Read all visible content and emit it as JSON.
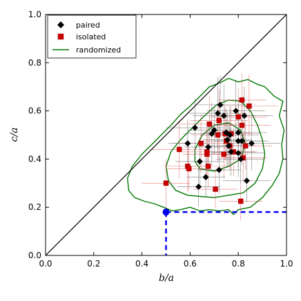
{
  "chart_data": {
    "type": "scatter",
    "xlabel": "b/a",
    "ylabel": "c/a",
    "xlim": [
      0.0,
      1.0
    ],
    "ylim": [
      0.0,
      1.0
    ],
    "x_ticks": [
      "0.0",
      "0.2",
      "0.4",
      "0.6",
      "0.8",
      "1.0"
    ],
    "y_ticks": [
      "0.0",
      "0.2",
      "0.4",
      "0.6",
      "0.8",
      "1.0"
    ],
    "grid": false,
    "legend_position": "top-left",
    "colors": {
      "paired": "#000000",
      "isolated": "#cc0000",
      "randomized": "#007700",
      "reference_point": "#0000ee",
      "diagonal": "#000000"
    },
    "series": [
      {
        "name": "paired",
        "marker": "diamond",
        "points": [
          {
            "x": 0.59,
            "y": 0.465,
            "xerr": 0.08,
            "yerr": 0.1
          },
          {
            "x": 0.62,
            "y": 0.53,
            "xerr": 0.12,
            "yerr": 0.12
          },
          {
            "x": 0.635,
            "y": 0.285,
            "xerr": 0.09,
            "yerr": 0.08
          },
          {
            "x": 0.64,
            "y": 0.39,
            "xerr": 0.1,
            "yerr": 0.1
          },
          {
            "x": 0.665,
            "y": 0.325,
            "xerr": 0.08,
            "yerr": 0.08
          },
          {
            "x": 0.675,
            "y": 0.45,
            "xerr": 0.1,
            "yerr": 0.09
          },
          {
            "x": 0.69,
            "y": 0.505,
            "xerr": 0.12,
            "yerr": 0.13
          },
          {
            "x": 0.7,
            "y": 0.52,
            "xerr": 0.11,
            "yerr": 0.1
          },
          {
            "x": 0.715,
            "y": 0.59,
            "xerr": 0.12,
            "yerr": 0.15
          },
          {
            "x": 0.72,
            "y": 0.355,
            "xerr": 0.09,
            "yerr": 0.1
          },
          {
            "x": 0.725,
            "y": 0.625,
            "xerr": 0.1,
            "yerr": 0.12
          },
          {
            "x": 0.74,
            "y": 0.58,
            "xerr": 0.13,
            "yerr": 0.13
          },
          {
            "x": 0.75,
            "y": 0.51,
            "xerr": 0.1,
            "yerr": 0.1
          },
          {
            "x": 0.755,
            "y": 0.48,
            "xerr": 0.1,
            "yerr": 0.11
          },
          {
            "x": 0.76,
            "y": 0.455,
            "xerr": 0.09,
            "yerr": 0.09
          },
          {
            "x": 0.765,
            "y": 0.5,
            "xerr": 0.12,
            "yerr": 0.12
          },
          {
            "x": 0.77,
            "y": 0.43,
            "xerr": 0.1,
            "yerr": 0.1
          },
          {
            "x": 0.79,
            "y": 0.6,
            "xerr": 0.12,
            "yerr": 0.13
          },
          {
            "x": 0.8,
            "y": 0.51,
            "xerr": 0.12,
            "yerr": 0.12
          },
          {
            "x": 0.8,
            "y": 0.475,
            "xerr": 0.1,
            "yerr": 0.11
          },
          {
            "x": 0.8,
            "y": 0.425,
            "xerr": 0.11,
            "yerr": 0.1
          },
          {
            "x": 0.81,
            "y": 0.4,
            "xerr": 0.1,
            "yerr": 0.1
          },
          {
            "x": 0.815,
            "y": 0.475,
            "xerr": 0.11,
            "yerr": 0.1
          },
          {
            "x": 0.825,
            "y": 0.58,
            "xerr": 0.12,
            "yerr": 0.12
          },
          {
            "x": 0.835,
            "y": 0.31,
            "xerr": 0.1,
            "yerr": 0.09
          },
          {
            "x": 0.855,
            "y": 0.465,
            "xerr": 0.12,
            "yerr": 0.11
          }
        ]
      },
      {
        "name": "isolated",
        "marker": "square",
        "points": [
          {
            "x": 0.5,
            "y": 0.3,
            "xerr": 0.1,
            "yerr": 0.1
          },
          {
            "x": 0.555,
            "y": 0.44,
            "xerr": 0.12,
            "yerr": 0.12
          },
          {
            "x": 0.59,
            "y": 0.37,
            "xerr": 0.1,
            "yerr": 0.11
          },
          {
            "x": 0.595,
            "y": 0.36,
            "xerr": 0.09,
            "yerr": 0.09
          },
          {
            "x": 0.645,
            "y": 0.465,
            "xerr": 0.12,
            "yerr": 0.12
          },
          {
            "x": 0.67,
            "y": 0.43,
            "xerr": 0.11,
            "yerr": 0.1
          },
          {
            "x": 0.67,
            "y": 0.42,
            "xerr": 0.1,
            "yerr": 0.1
          },
          {
            "x": 0.675,
            "y": 0.37,
            "xerr": 0.1,
            "yerr": 0.09
          },
          {
            "x": 0.68,
            "y": 0.545,
            "xerr": 0.12,
            "yerr": 0.12
          },
          {
            "x": 0.705,
            "y": 0.275,
            "xerr": 0.09,
            "yerr": 0.08
          },
          {
            "x": 0.715,
            "y": 0.5,
            "xerr": 0.11,
            "yerr": 0.11
          },
          {
            "x": 0.72,
            "y": 0.56,
            "xerr": 0.12,
            "yerr": 0.13
          },
          {
            "x": 0.74,
            "y": 0.42,
            "xerr": 0.1,
            "yerr": 0.1
          },
          {
            "x": 0.745,
            "y": 0.505,
            "xerr": 0.11,
            "yerr": 0.11
          },
          {
            "x": 0.75,
            "y": 0.475,
            "xerr": 0.1,
            "yerr": 0.1
          },
          {
            "x": 0.765,
            "y": 0.455,
            "xerr": 0.11,
            "yerr": 0.1
          },
          {
            "x": 0.77,
            "y": 0.505,
            "xerr": 0.12,
            "yerr": 0.11
          },
          {
            "x": 0.78,
            "y": 0.43,
            "xerr": 0.1,
            "yerr": 0.1
          },
          {
            "x": 0.8,
            "y": 0.575,
            "xerr": 0.12,
            "yerr": 0.12
          },
          {
            "x": 0.81,
            "y": 0.225,
            "xerr": 0.09,
            "yerr": 0.08
          },
          {
            "x": 0.815,
            "y": 0.645,
            "xerr": 0.1,
            "yerr": 0.11
          },
          {
            "x": 0.815,
            "y": 0.54,
            "xerr": 0.12,
            "yerr": 0.12
          },
          {
            "x": 0.82,
            "y": 0.405,
            "xerr": 0.1,
            "yerr": 0.1
          },
          {
            "x": 0.83,
            "y": 0.455,
            "xerr": 0.11,
            "yerr": 0.1
          },
          {
            "x": 0.845,
            "y": 0.62,
            "xerr": 0.12,
            "yerr": 0.13
          }
        ]
      },
      {
        "name": "randomized",
        "type": "contour",
        "levels": [
          {
            "points": [
              [
                0.525,
                0.185
              ],
              [
                0.56,
                0.19
              ],
              [
                0.6,
                0.2
              ],
              [
                0.64,
                0.185
              ],
              [
                0.68,
                0.19
              ],
              [
                0.72,
                0.185
              ],
              [
                0.76,
                0.19
              ],
              [
                0.78,
                0.17
              ],
              [
                0.8,
                0.19
              ],
              [
                0.85,
                0.2
              ],
              [
                0.9,
                0.24
              ],
              [
                0.94,
                0.29
              ],
              [
                0.97,
                0.34
              ],
              [
                0.985,
                0.4
              ],
              [
                0.98,
                0.46
              ],
              [
                0.99,
                0.52
              ],
              [
                0.97,
                0.58
              ],
              [
                0.985,
                0.64
              ],
              [
                0.95,
                0.66
              ],
              [
                0.91,
                0.7
              ],
              [
                0.88,
                0.71
              ],
              [
                0.84,
                0.73
              ],
              [
                0.8,
                0.72
              ],
              [
                0.76,
                0.735
              ],
              [
                0.72,
                0.715
              ],
              [
                0.68,
                0.7
              ],
              [
                0.64,
                0.66
              ],
              [
                0.6,
                0.62
              ],
              [
                0.56,
                0.585
              ],
              [
                0.52,
                0.54
              ],
              [
                0.48,
                0.5
              ],
              [
                0.44,
                0.46
              ],
              [
                0.4,
                0.42
              ],
              [
                0.36,
                0.37
              ],
              [
                0.34,
                0.32
              ],
              [
                0.345,
                0.27
              ],
              [
                0.37,
                0.24
              ],
              [
                0.41,
                0.225
              ],
              [
                0.45,
                0.215
              ],
              [
                0.49,
                0.2
              ],
              [
                0.525,
                0.185
              ]
            ]
          },
          {
            "points": [
              [
                0.59,
                0.25
              ],
              [
                0.64,
                0.245
              ],
              [
                0.7,
                0.24
              ],
              [
                0.76,
                0.25
              ],
              [
                0.82,
                0.26
              ],
              [
                0.87,
                0.3
              ],
              [
                0.9,
                0.36
              ],
              [
                0.91,
                0.42
              ],
              [
                0.9,
                0.48
              ],
              [
                0.88,
                0.54
              ],
              [
                0.85,
                0.6
              ],
              [
                0.81,
                0.64
              ],
              [
                0.76,
                0.645
              ],
              [
                0.71,
                0.625
              ],
              [
                0.66,
                0.58
              ],
              [
                0.61,
                0.53
              ],
              [
                0.56,
                0.48
              ],
              [
                0.52,
                0.43
              ],
              [
                0.5,
                0.37
              ],
              [
                0.51,
                0.31
              ],
              [
                0.54,
                0.27
              ],
              [
                0.59,
                0.25
              ]
            ]
          },
          {
            "points": [
              [
                0.64,
                0.36
              ],
              [
                0.7,
                0.35
              ],
              [
                0.76,
                0.37
              ],
              [
                0.81,
                0.4
              ],
              [
                0.83,
                0.46
              ],
              [
                0.81,
                0.52
              ],
              [
                0.76,
                0.55
              ],
              [
                0.7,
                0.54
              ],
              [
                0.65,
                0.5
              ],
              [
                0.62,
                0.44
              ],
              [
                0.62,
                0.39
              ],
              [
                0.64,
                0.36
              ]
            ]
          }
        ]
      }
    ],
    "reference_line": {
      "x": [
        0.0,
        1.0
      ],
      "y": [
        0.0,
        1.0
      ]
    },
    "reference_point": {
      "x": 0.5,
      "y": 0.18,
      "dashed_to_x_axis": true,
      "dashed_to_right_edge": true
    }
  }
}
